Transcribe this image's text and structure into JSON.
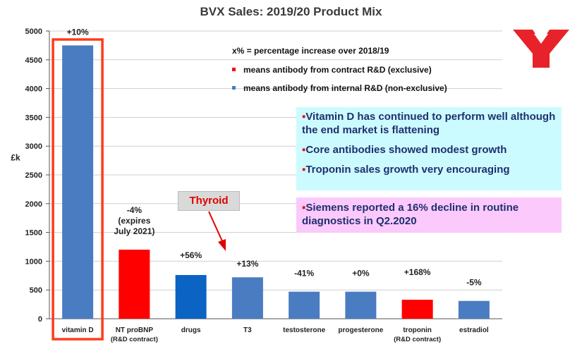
{
  "title": "BVX Sales: 2019/20 Product Mix",
  "colors": {
    "internal": "#4a7cc1",
    "contract": "#ff0000",
    "highlight": "#ff3b1a"
  },
  "legend": {
    "line1": "x% = percentage increase over 2018/19",
    "line2": "means antibody from contract R&D (exclusive)",
    "line3": "means antibody from internal R&D (non-exclusive)"
  },
  "notes": {
    "blue": [
      "Vitamin D has continued to perform well although the end market is flattening",
      "Core antibodies showed modest growth",
      "Troponin sales growth very encouraging"
    ],
    "pink": "Siemens reported a 16% decline in routine diagnostics in Q2.2020"
  },
  "callout": "Thyroid",
  "chart_data": {
    "type": "bar",
    "title": "BVX Sales: 2019/20 Product Mix",
    "ylabel": "£k",
    "xlabel": "",
    "ylim": [
      0,
      5000
    ],
    "yticks": [
      0,
      500,
      1000,
      1500,
      2000,
      2500,
      3000,
      3500,
      4000,
      4500,
      5000
    ],
    "grid": true,
    "categories": [
      [
        "vitamin D"
      ],
      [
        "NT proBNP",
        "(R&D contract)"
      ],
      [
        "drugs"
      ],
      [
        "T3"
      ],
      [
        "testosterone"
      ],
      [
        "progesterone"
      ],
      [
        "troponin",
        "(R&D contract)"
      ],
      [
        "estradiol"
      ]
    ],
    "values": [
      4750,
      1200,
      760,
      720,
      470,
      470,
      330,
      310
    ],
    "colors": [
      "#4a7cc1",
      "#ff0000",
      "#0b63c4",
      "#4a7cc1",
      "#4a7cc1",
      "#4a7cc1",
      "#ff0000",
      "#4a7cc1"
    ],
    "data_labels": [
      [
        "+10%"
      ],
      [
        "-4%",
        "(expires",
        "July 2021)"
      ],
      [
        "+56%"
      ],
      [
        "+13%"
      ],
      [
        "-41%"
      ],
      [
        "+0%"
      ],
      [
        "+168%"
      ],
      [
        "-5%"
      ]
    ]
  }
}
